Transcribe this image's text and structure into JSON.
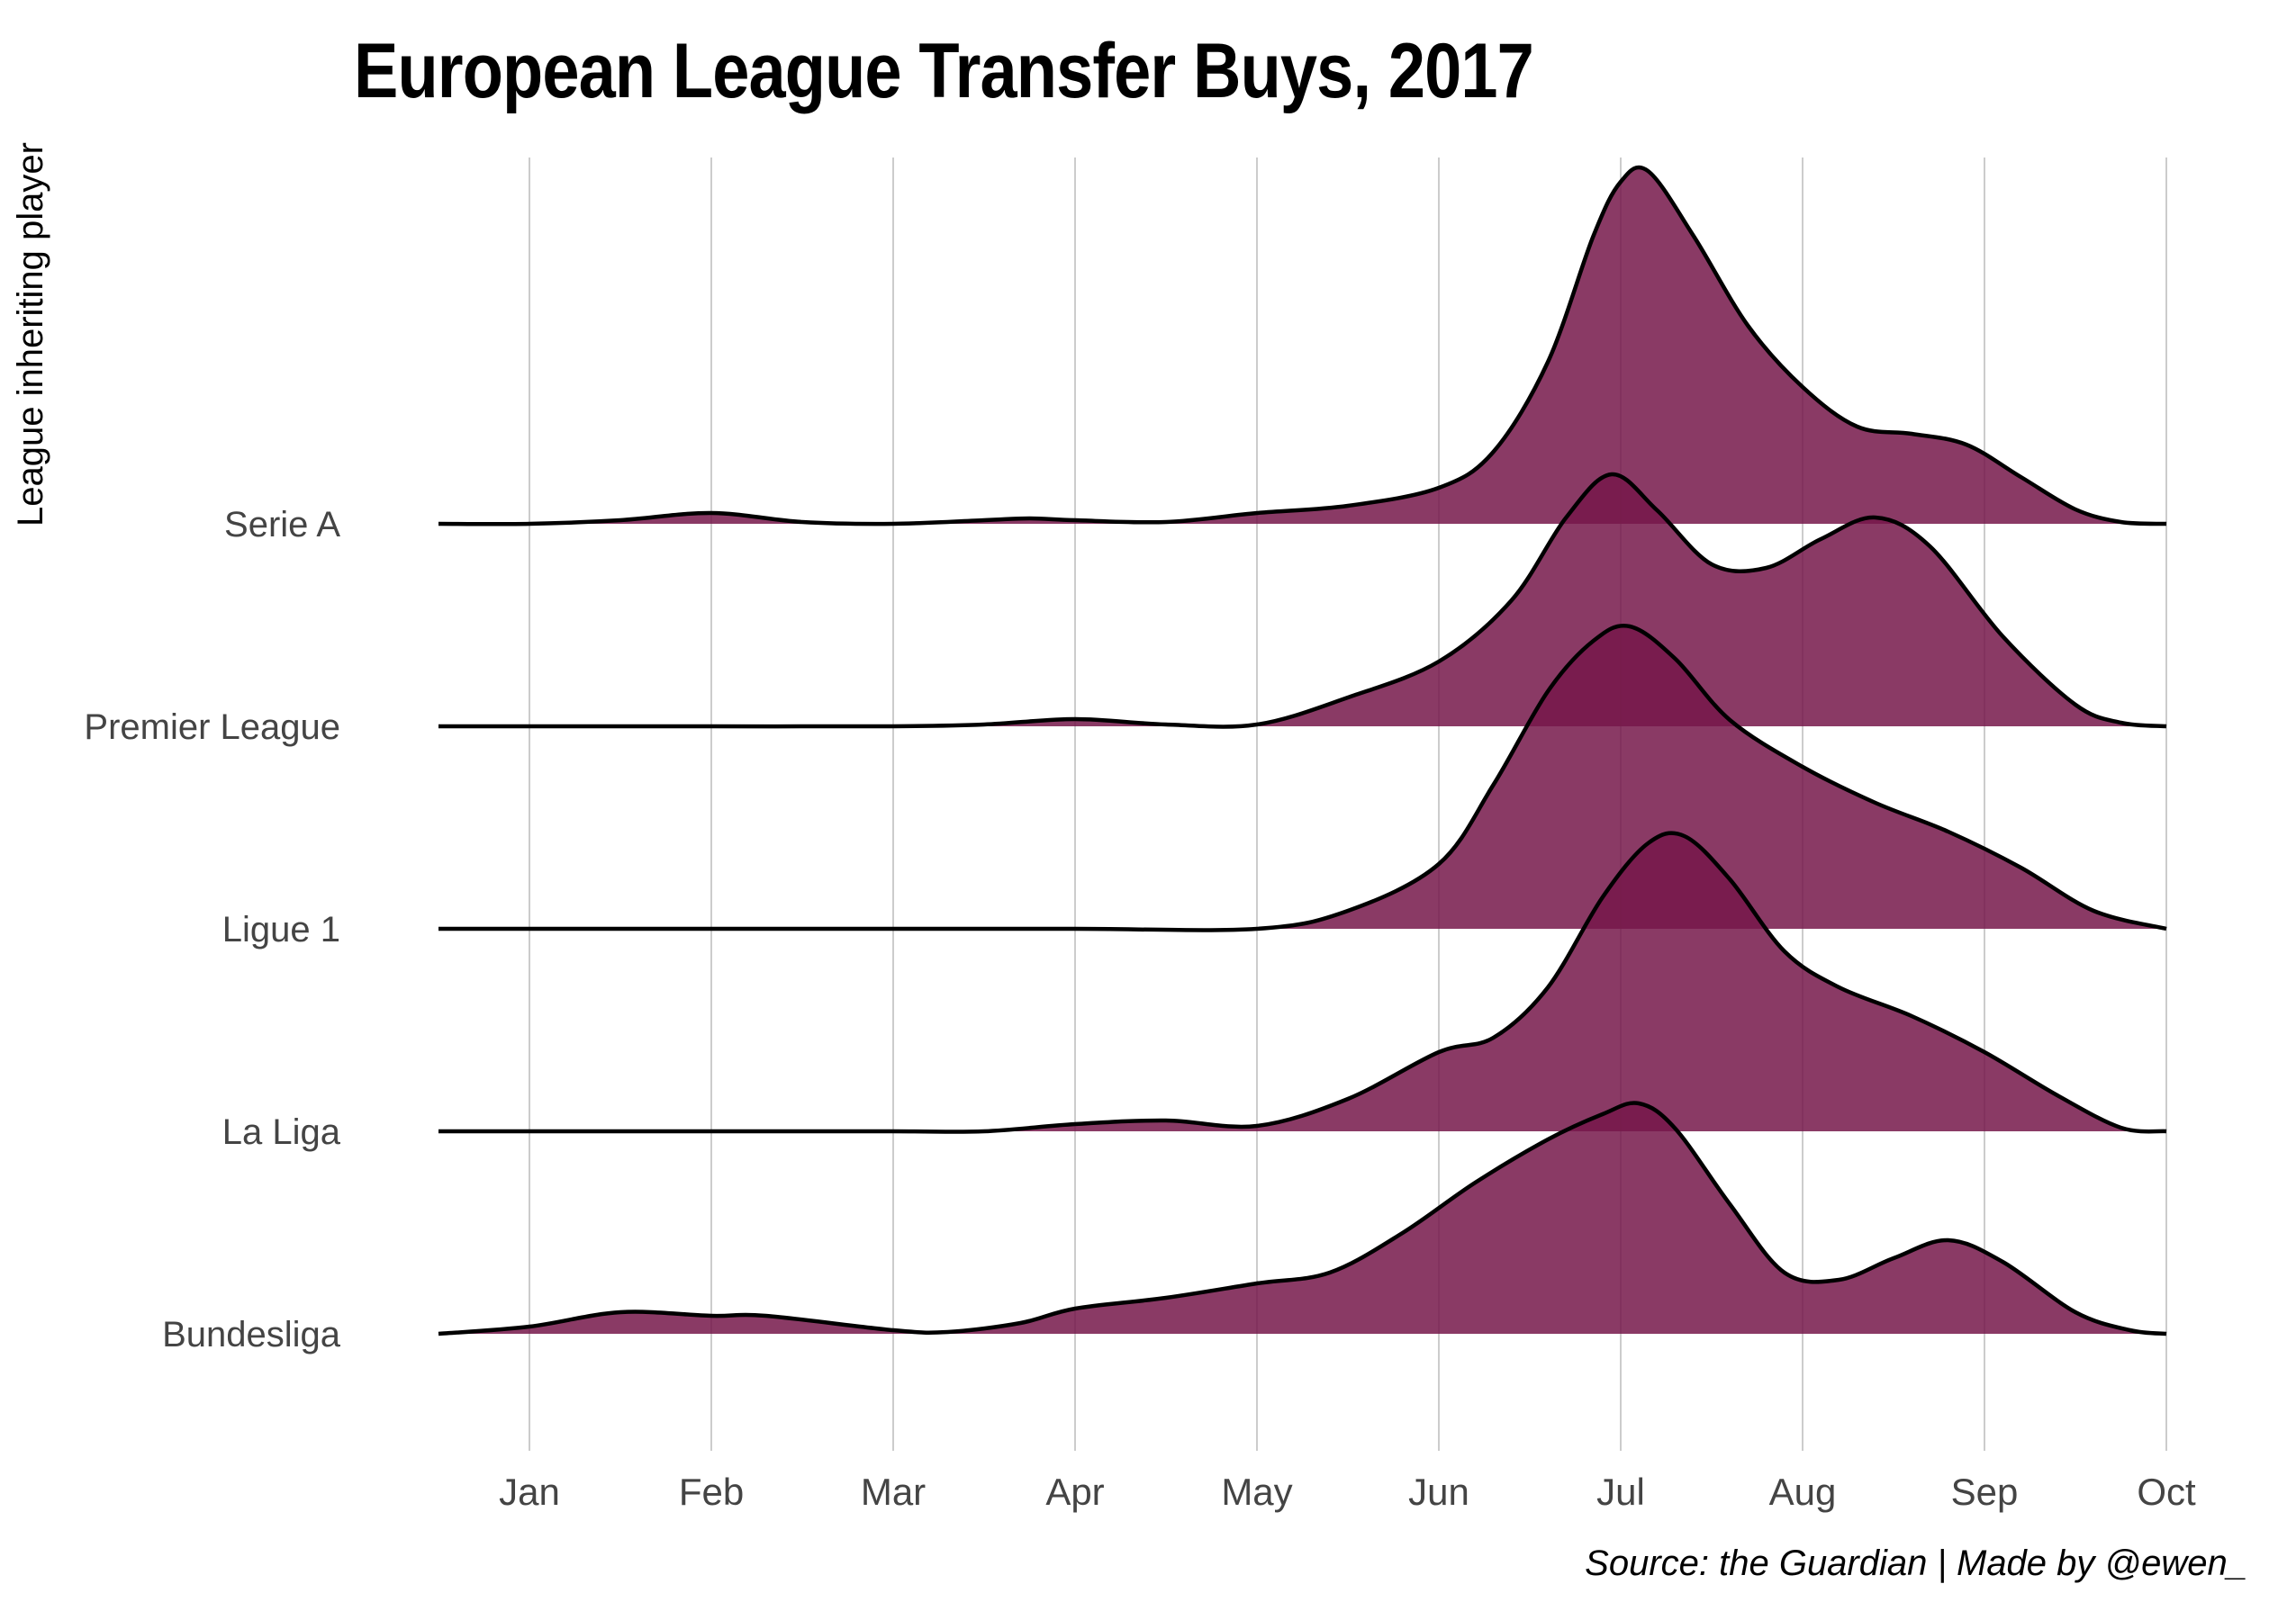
{
  "title": "European League Transfer Buys, 2017",
  "caption": "Source: the Guardian   |   Made by @ewen_",
  "chart_data": {
    "type": "area",
    "subtype": "ridgeline",
    "title": "European League Transfer Buys, 2017",
    "xlabel": "",
    "ylabel": "League inheriting player",
    "x_ticks": [
      "Jan",
      "Feb",
      "Mar",
      "Apr",
      "May",
      "Jun",
      "Jul",
      "Aug",
      "Sep",
      "Oct"
    ],
    "xlim": [
      -0.5,
      9.0
    ],
    "grid": "vertical",
    "legend": "none",
    "colors": {
      "fill": "#76174a",
      "stroke": "#000000",
      "grid": "#bbbbbb"
    },
    "series": [
      {
        "name": "Serie A",
        "points": [
          [
            -0.5,
            0
          ],
          [
            0,
            0
          ],
          [
            0.5,
            0.01
          ],
          [
            1,
            0.03
          ],
          [
            1.5,
            0.005
          ],
          [
            2,
            0
          ],
          [
            2.5,
            0.01
          ],
          [
            2.75,
            0.015
          ],
          [
            3,
            0.01
          ],
          [
            3.5,
            0.005
          ],
          [
            4,
            0.03
          ],
          [
            4.5,
            0.05
          ],
          [
            5,
            0.1
          ],
          [
            5.3,
            0.2
          ],
          [
            5.6,
            0.45
          ],
          [
            5.85,
            0.8
          ],
          [
            6.0,
            0.95
          ],
          [
            6.15,
            0.98
          ],
          [
            6.4,
            0.8
          ],
          [
            6.7,
            0.55
          ],
          [
            7,
            0.38
          ],
          [
            7.3,
            0.27
          ],
          [
            7.6,
            0.25
          ],
          [
            7.9,
            0.22
          ],
          [
            8.2,
            0.13
          ],
          [
            8.5,
            0.04
          ],
          [
            8.75,
            0.005
          ],
          [
            9,
            0
          ]
        ]
      },
      {
        "name": "Premier League",
        "points": [
          [
            -0.5,
            0
          ],
          [
            0,
            0
          ],
          [
            1,
            0
          ],
          [
            2,
            0
          ],
          [
            2.5,
            0.005
          ],
          [
            3,
            0.02
          ],
          [
            3.5,
            0.005
          ],
          [
            4,
            0.005
          ],
          [
            4.5,
            0.08
          ],
          [
            5,
            0.18
          ],
          [
            5.4,
            0.35
          ],
          [
            5.7,
            0.58
          ],
          [
            5.95,
            0.7
          ],
          [
            6.2,
            0.6
          ],
          [
            6.5,
            0.45
          ],
          [
            6.8,
            0.44
          ],
          [
            7.1,
            0.52
          ],
          [
            7.4,
            0.58
          ],
          [
            7.7,
            0.5
          ],
          [
            8.1,
            0.25
          ],
          [
            8.5,
            0.06
          ],
          [
            8.75,
            0.01
          ],
          [
            9,
            0
          ]
        ]
      },
      {
        "name": "Ligue 1",
        "points": [
          [
            -0.5,
            0
          ],
          [
            0,
            0
          ],
          [
            1,
            0
          ],
          [
            2,
            0
          ],
          [
            3,
            0
          ],
          [
            4,
            0
          ],
          [
            4.5,
            0.05
          ],
          [
            5,
            0.18
          ],
          [
            5.3,
            0.4
          ],
          [
            5.6,
            0.66
          ],
          [
            5.85,
            0.8
          ],
          [
            6.05,
            0.84
          ],
          [
            6.3,
            0.75
          ],
          [
            6.6,
            0.58
          ],
          [
            7,
            0.45
          ],
          [
            7.4,
            0.35
          ],
          [
            7.8,
            0.27
          ],
          [
            8.2,
            0.17
          ],
          [
            8.6,
            0.05
          ],
          [
            9,
            0
          ]
        ]
      },
      {
        "name": "La Liga",
        "points": [
          [
            -0.5,
            0
          ],
          [
            0,
            0
          ],
          [
            1,
            0
          ],
          [
            2,
            0
          ],
          [
            2.5,
            0
          ],
          [
            3,
            0.02
          ],
          [
            3.5,
            0.03
          ],
          [
            4,
            0.015
          ],
          [
            4.5,
            0.09
          ],
          [
            5,
            0.22
          ],
          [
            5.3,
            0.26
          ],
          [
            5.6,
            0.4
          ],
          [
            5.9,
            0.65
          ],
          [
            6.15,
            0.8
          ],
          [
            6.35,
            0.82
          ],
          [
            6.6,
            0.7
          ],
          [
            6.9,
            0.5
          ],
          [
            7.2,
            0.4
          ],
          [
            7.6,
            0.32
          ],
          [
            8,
            0.22
          ],
          [
            8.4,
            0.1
          ],
          [
            8.75,
            0.01
          ],
          [
            9,
            0
          ]
        ]
      },
      {
        "name": "Bundesliga",
        "points": [
          [
            -0.5,
            0
          ],
          [
            0,
            0.02
          ],
          [
            0.5,
            0.06
          ],
          [
            1,
            0.05
          ],
          [
            1.3,
            0.05
          ],
          [
            2,
            0.01
          ],
          [
            2.3,
            0.005
          ],
          [
            2.7,
            0.03
          ],
          [
            3,
            0.07
          ],
          [
            3.5,
            0.1
          ],
          [
            4,
            0.14
          ],
          [
            4.4,
            0.17
          ],
          [
            4.8,
            0.28
          ],
          [
            5.2,
            0.42
          ],
          [
            5.6,
            0.54
          ],
          [
            5.9,
            0.61
          ],
          [
            6.1,
            0.64
          ],
          [
            6.3,
            0.57
          ],
          [
            6.6,
            0.36
          ],
          [
            6.9,
            0.17
          ],
          [
            7.2,
            0.15
          ],
          [
            7.5,
            0.21
          ],
          [
            7.8,
            0.26
          ],
          [
            8.1,
            0.2
          ],
          [
            8.5,
            0.06
          ],
          [
            8.8,
            0.01
          ],
          [
            9,
            0
          ]
        ]
      }
    ]
  }
}
